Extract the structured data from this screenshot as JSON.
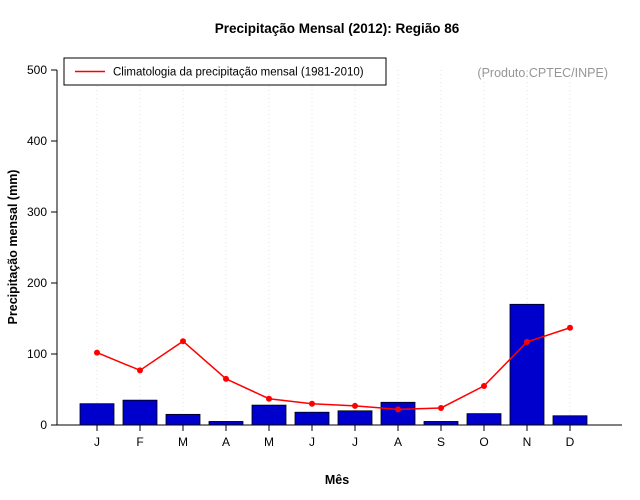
{
  "chart_data": {
    "type": "bar",
    "title": "Precipitação Mensal (2012): Região 86",
    "xlabel": "Mês",
    "ylabel": "Precipitação mensal (mm)",
    "ylim": [
      0,
      500
    ],
    "yticks": [
      0,
      100,
      200,
      300,
      400,
      500
    ],
    "categories": [
      "J",
      "F",
      "M",
      "A",
      "M",
      "J",
      "J",
      "A",
      "S",
      "O",
      "N",
      "D"
    ],
    "series": [
      {
        "name": "Precipitação mensal 2012",
        "type": "bar",
        "color": "#0000cd",
        "values": [
          30,
          35,
          15,
          5,
          28,
          18,
          20,
          32,
          5,
          16,
          170,
          13
        ]
      },
      {
        "name": "Climatologia da precipitação mensal (1981-2010)",
        "type": "line",
        "color": "#ff0000",
        "values": [
          102,
          77,
          118,
          65,
          37,
          30,
          27,
          22,
          24,
          55,
          117,
          137
        ]
      }
    ],
    "legend": {
      "label": "Climatologia da precipitação mensal (1981-2010)",
      "position": "top-left"
    },
    "annotation": "(Produto:CPTEC/INPE)",
    "grid": "vertical-dotted"
  }
}
